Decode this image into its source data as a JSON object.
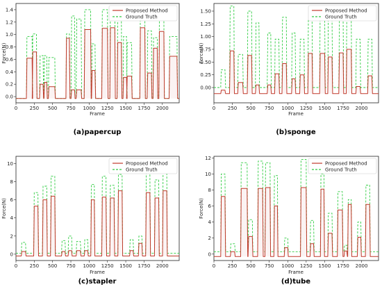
{
  "chart_data": [
    {
      "type": "line",
      "caption": "(a)papercup",
      "xlabel": "Frame",
      "ylabel": "Force(N)",
      "xlim": [
        0,
        2230
      ],
      "ylim": [
        -0.1,
        1.5
      ],
      "xticks": [
        0,
        250,
        500,
        750,
        1000,
        1250,
        1500,
        1750,
        2000
      ],
      "yticks": [
        0.0,
        0.2,
        0.4,
        0.6,
        0.8,
        1.0,
        1.2,
        1.4
      ],
      "ytick_labels": [
        "0.0",
        "0.2",
        "0.4",
        "0.6",
        "0.8",
        "1.0",
        "1.2",
        "1.4"
      ],
      "baseline_proposed": -0.03,
      "baseline_truth": -0.03,
      "legend_position": "top-right",
      "series": [
        {
          "name": "Proposed Method",
          "color": "#c0392b",
          "dash": "solid"
        },
        {
          "name": "Ground Truth",
          "color": "#2ecc40",
          "dash": "dashed"
        }
      ],
      "pulses": [
        {
          "start": 150,
          "end": 220,
          "proposed": 0.62,
          "truth": 0.97
        },
        {
          "start": 230,
          "end": 280,
          "proposed": 0.72,
          "truth": 1.01
        },
        {
          "start": 330,
          "end": 370,
          "proposed": 0.2,
          "truth": 0.66
        },
        {
          "start": 390,
          "end": 420,
          "proposed": 0.23,
          "truth": 0.66
        },
        {
          "start": 450,
          "end": 530,
          "proposed": 0.16,
          "truth": 0.63
        },
        {
          "start": 690,
          "end": 730,
          "proposed": 0.94,
          "truth": 1.01
        },
        {
          "start": 760,
          "end": 800,
          "proposed": 0.11,
          "truth": 1.3
        },
        {
          "start": 830,
          "end": 890,
          "proposed": 0.11,
          "truth": 1.25
        },
        {
          "start": 940,
          "end": 1020,
          "proposed": 1.08,
          "truth": 1.4
        },
        {
          "start": 1040,
          "end": 1080,
          "proposed": 0.42,
          "truth": 0.85
        },
        {
          "start": 1180,
          "end": 1250,
          "proposed": 1.1,
          "truth": 1.4
        },
        {
          "start": 1290,
          "end": 1350,
          "proposed": 1.11,
          "truth": 1.38
        },
        {
          "start": 1390,
          "end": 1440,
          "proposed": 0.87,
          "truth": 1.3
        },
        {
          "start": 1470,
          "end": 1510,
          "proposed": 0.31,
          "truth": 0.97
        },
        {
          "start": 1520,
          "end": 1580,
          "proposed": 0.33,
          "truth": 0.87
        },
        {
          "start": 1700,
          "end": 1760,
          "proposed": 1.11,
          "truth": 1.4
        },
        {
          "start": 1800,
          "end": 1850,
          "proposed": 0.38,
          "truth": 1.06
        },
        {
          "start": 1880,
          "end": 1930,
          "proposed": 0.78,
          "truth": 0.95
        },
        {
          "start": 1960,
          "end": 2020,
          "proposed": 1.05,
          "truth": 1.3
        },
        {
          "start": 2100,
          "end": 2200,
          "proposed": 0.65,
          "truth": 0.97
        }
      ]
    },
    {
      "type": "line",
      "caption": "(b)sponge",
      "xlabel": "Frame",
      "ylabel": "Force(N)",
      "xlim": [
        0,
        2230
      ],
      "ylim": [
        -0.3,
        1.65
      ],
      "xticks": [
        0,
        250,
        500,
        750,
        1000,
        1250,
        1500,
        1750,
        2000
      ],
      "yticks": [
        0.0,
        0.25,
        0.5,
        0.75,
        1.0,
        1.25,
        1.5
      ],
      "ytick_labels": [
        "0.00",
        "0.25",
        "0.50",
        "0.75",
        "1.00",
        "1.25",
        "1.50"
      ],
      "baseline_proposed": -0.12,
      "baseline_truth": 0.0,
      "legend_position": "top-right",
      "series": [
        {
          "name": "Proposed Method",
          "color": "#c0392b",
          "dash": "solid"
        },
        {
          "name": "Ground Truth",
          "color": "#2ecc40",
          "dash": "dashed"
        }
      ],
      "pulses": [
        {
          "start": 100,
          "end": 150,
          "proposed": -0.05,
          "truth": 0.35
        },
        {
          "start": 220,
          "end": 270,
          "proposed": 0.72,
          "truth": 1.6
        },
        {
          "start": 330,
          "end": 390,
          "proposed": 0.1,
          "truth": 0.65
        },
        {
          "start": 460,
          "end": 510,
          "proposed": 0.63,
          "truth": 1.5
        },
        {
          "start": 570,
          "end": 610,
          "proposed": 0.05,
          "truth": 1.27
        },
        {
          "start": 730,
          "end": 770,
          "proposed": 0.05,
          "truth": 1.07
        },
        {
          "start": 830,
          "end": 880,
          "proposed": 0.27,
          "truth": 0.95
        },
        {
          "start": 930,
          "end": 980,
          "proposed": 0.47,
          "truth": 1.38
        },
        {
          "start": 1060,
          "end": 1100,
          "proposed": 0.17,
          "truth": 1.07
        },
        {
          "start": 1170,
          "end": 1220,
          "proposed": 0.25,
          "truth": 0.95
        },
        {
          "start": 1280,
          "end": 1330,
          "proposed": 0.67,
          "truth": 1.32
        },
        {
          "start": 1440,
          "end": 1500,
          "proposed": 0.67,
          "truth": 1.57
        },
        {
          "start": 1550,
          "end": 1600,
          "proposed": 0.6,
          "truth": 1.42
        },
        {
          "start": 1700,
          "end": 1750,
          "proposed": 0.68,
          "truth": 1.38
        },
        {
          "start": 1800,
          "end": 1860,
          "proposed": 0.75,
          "truth": 1.4
        },
        {
          "start": 1930,
          "end": 1980,
          "proposed": 0.02,
          "truth": 0.95
        },
        {
          "start": 2090,
          "end": 2140,
          "proposed": 0.23,
          "truth": 0.95
        }
      ]
    },
    {
      "type": "line",
      "caption": "(c)stapler",
      "xlabel": "Frame",
      "ylabel": "Force(N)",
      "xlim": [
        0,
        2230
      ],
      "ylim": [
        -0.7,
        10.8
      ],
      "xticks": [
        0,
        250,
        500,
        750,
        1000,
        1250,
        1500,
        1750,
        2000
      ],
      "yticks": [
        0,
        2,
        4,
        6,
        8,
        10
      ],
      "ytick_labels": [
        "0",
        "2",
        "4",
        "6",
        "8",
        "10"
      ],
      "baseline_proposed": -0.2,
      "baseline_truth": 0.1,
      "legend_position": "top-right",
      "series": [
        {
          "name": "Proposed Method",
          "color": "#c0392b",
          "dash": "solid"
        },
        {
          "name": "Ground Truth",
          "color": "#2ecc40",
          "dash": "dashed"
        }
      ],
      "pulses": [
        {
          "start": 80,
          "end": 130,
          "proposed": 0.3,
          "truth": 1.3
        },
        {
          "start": 250,
          "end": 300,
          "proposed": 5.3,
          "truth": 6.8
        },
        {
          "start": 370,
          "end": 420,
          "proposed": 6.0,
          "truth": 7.5
        },
        {
          "start": 480,
          "end": 530,
          "proposed": 6.4,
          "truth": 8.6
        },
        {
          "start": 630,
          "end": 670,
          "proposed": 0.3,
          "truth": 1.5
        },
        {
          "start": 720,
          "end": 760,
          "proposed": 0.4,
          "truth": 2.0
        },
        {
          "start": 830,
          "end": 880,
          "proposed": 0.4,
          "truth": 1.4
        },
        {
          "start": 940,
          "end": 980,
          "proposed": 0.4,
          "truth": 1.6
        },
        {
          "start": 1030,
          "end": 1070,
          "proposed": 6.0,
          "truth": 7.7
        },
        {
          "start": 1180,
          "end": 1230,
          "proposed": 6.3,
          "truth": 8.6
        },
        {
          "start": 1290,
          "end": 1340,
          "proposed": 6.2,
          "truth": 7.6
        },
        {
          "start": 1400,
          "end": 1450,
          "proposed": 7.0,
          "truth": 8.8
        },
        {
          "start": 1560,
          "end": 1600,
          "proposed": 0.4,
          "truth": 1.6
        },
        {
          "start": 1680,
          "end": 1720,
          "proposed": 1.2,
          "truth": 2.0
        },
        {
          "start": 1780,
          "end": 1830,
          "proposed": 6.8,
          "truth": 9.0
        },
        {
          "start": 1900,
          "end": 1950,
          "proposed": 6.2,
          "truth": 8.2
        },
        {
          "start": 2010,
          "end": 2060,
          "proposed": 7.0,
          "truth": 9.1
        }
      ]
    },
    {
      "type": "line",
      "caption": "(d)tube",
      "xlabel": "Frame",
      "ylabel": "Force(N)",
      "xlim": [
        0,
        2230
      ],
      "ylim": [
        -0.8,
        12.2
      ],
      "xticks": [
        0,
        250,
        500,
        750,
        1000,
        1250,
        1500,
        1750,
        2000
      ],
      "yticks": [
        0,
        2,
        4,
        6,
        8,
        10,
        12
      ],
      "ytick_labels": [
        "0",
        "2",
        "4",
        "6",
        "8",
        "10",
        "12"
      ],
      "baseline_proposed": -0.3,
      "baseline_truth": 0.3,
      "legend_position": "top-right",
      "series": [
        {
          "name": "Proposed Method",
          "color": "#c0392b",
          "dash": "solid"
        },
        {
          "name": "Ground Truth",
          "color": "#2ecc40",
          "dash": "dashed"
        }
      ],
      "pulses": [
        {
          "start": 100,
          "end": 150,
          "proposed": 7.2,
          "truth": 10.0
        },
        {
          "start": 230,
          "end": 280,
          "proposed": 0.3,
          "truth": 1.3
        },
        {
          "start": 370,
          "end": 450,
          "proposed": 8.2,
          "truth": 11.4
        },
        {
          "start": 470,
          "end": 520,
          "proposed": 2.2,
          "truth": 4.3
        },
        {
          "start": 600,
          "end": 660,
          "proposed": 8.2,
          "truth": 11.6
        },
        {
          "start": 700,
          "end": 760,
          "proposed": 8.3,
          "truth": 11.4
        },
        {
          "start": 820,
          "end": 860,
          "proposed": 6.0,
          "truth": 9.8
        },
        {
          "start": 960,
          "end": 1000,
          "proposed": 0.8,
          "truth": 2.0
        },
        {
          "start": 1180,
          "end": 1250,
          "proposed": 8.3,
          "truth": 11.8
        },
        {
          "start": 1310,
          "end": 1350,
          "proposed": 1.3,
          "truth": 4.2
        },
        {
          "start": 1450,
          "end": 1490,
          "proposed": 8.1,
          "truth": 10.0
        },
        {
          "start": 1550,
          "end": 1600,
          "proposed": 2.6,
          "truth": 5.1
        },
        {
          "start": 1680,
          "end": 1740,
          "proposed": 5.5,
          "truth": 7.8
        },
        {
          "start": 1770,
          "end": 1800,
          "proposed": 0.4,
          "truth": 1.1
        },
        {
          "start": 1820,
          "end": 1860,
          "proposed": 6.2,
          "truth": 6.8
        },
        {
          "start": 1950,
          "end": 1990,
          "proposed": 2.1,
          "truth": 4.0
        },
        {
          "start": 2060,
          "end": 2110,
          "proposed": 6.2,
          "truth": 8.6
        }
      ]
    }
  ]
}
